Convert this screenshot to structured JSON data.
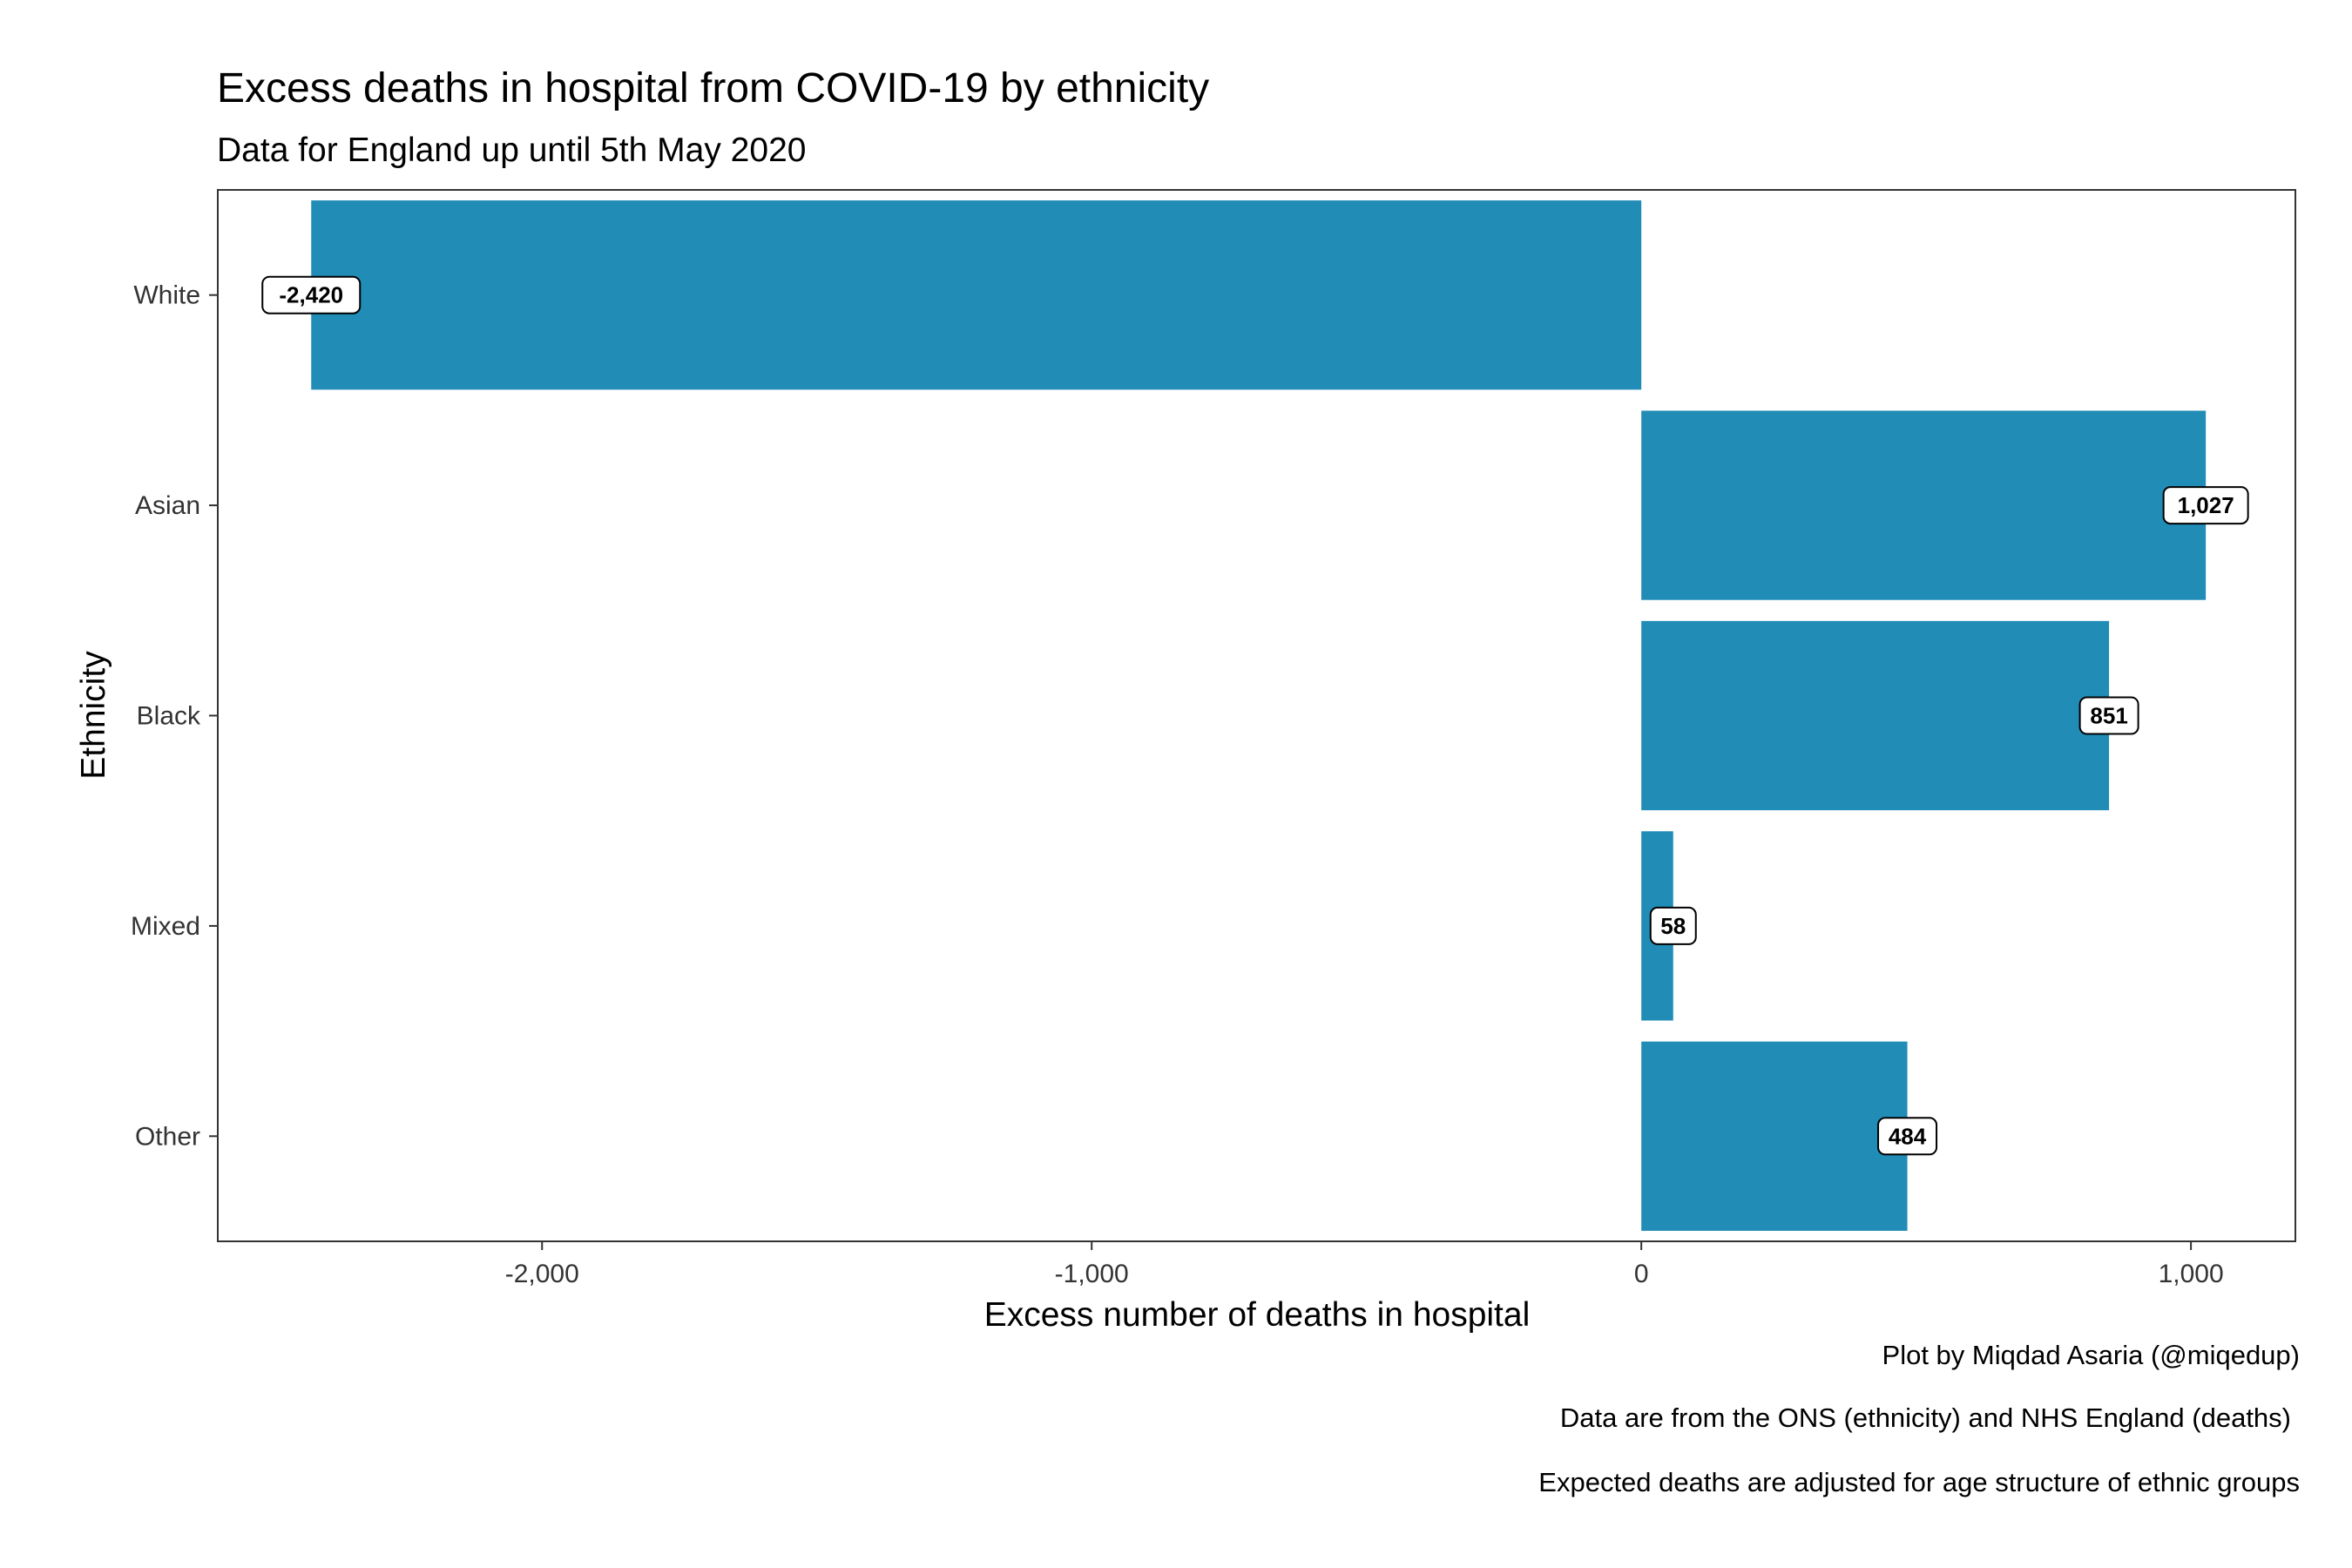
{
  "chart_data": {
    "type": "bar",
    "orientation": "horizontal",
    "title": "Excess deaths in hospital from COVID-19 by ethnicity",
    "subtitle": "Data for England up until 5th May 2020",
    "xlabel": "Excess number of deaths in hospital",
    "ylabel": "Ethnicity",
    "categories": [
      "White",
      "Asian",
      "Black",
      "Mixed",
      "Other"
    ],
    "values": [
      -2420,
      1027,
      851,
      58,
      484
    ],
    "value_labels": [
      "-2,420",
      "1,027",
      "851",
      "58",
      "484"
    ],
    "xlim": [
      -2590,
      1190
    ],
    "x_ticks": [
      -2000,
      -1000,
      0,
      1000
    ],
    "x_tick_labels": [
      "-2,000",
      "-1,000",
      "0",
      "1,000"
    ],
    "grid": false,
    "legend": "none",
    "bar_color": "#218cb6",
    "captions": [
      "Plot by Miqdad Asaria (@miqedup)",
      "Data are from the ONS (ethnicity) and NHS England (deaths)",
      "Expected deaths are adjusted for age structure of ethnic groups"
    ]
  }
}
